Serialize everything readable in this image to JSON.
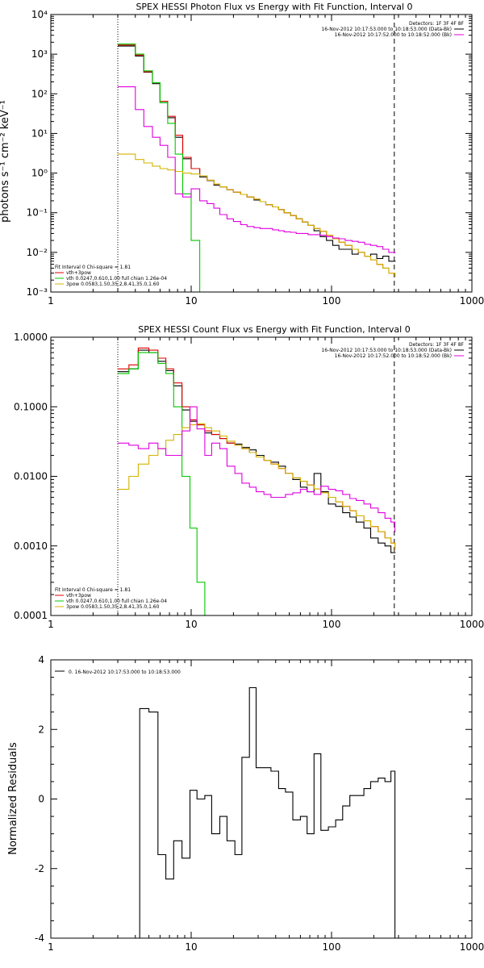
{
  "chart_data": [
    {
      "type": "line",
      "title": "SPEX HESSI Photon Flux vs Energy with Fit Function, Interval 0",
      "ylabel": "photons s⁻¹ cm⁻² keV⁻¹",
      "xlabel": "",
      "x_scale": "log",
      "y_scale": "log",
      "xlim": [
        1,
        1000
      ],
      "ylim": [
        0.001,
        10000
      ],
      "x_ticks": [
        "1",
        "10",
        "100",
        "1000"
      ],
      "y_ticks": [
        "10⁻³",
        "10⁻²",
        "10⁻¹",
        "10⁰",
        "10¹",
        "10²",
        "10³",
        "10⁴"
      ],
      "vlines": [
        {
          "x": 3,
          "style": "dotted"
        },
        {
          "x": 280,
          "style": "dashed"
        }
      ],
      "legend_top_right": [
        "Detectors: 1F 3F 4F 8F",
        "16-Nov-2012 10:17:53.000 to 10:18:53.000 (Data-Bk)",
        "16-Nov-2012 10:17:52.000 to 10:18:52.000 (Bk)"
      ],
      "legend_bottom_left": [
        "Fit Interval  0    Chi-square = 1.81",
        "vth+3pow",
        "vth 0.0247,0.610,1.00  full chian 1.26e-04",
        "3pow 0.0583,1.50,35.2,8.41,35.0,1.60"
      ],
      "series": [
        {
          "name": "Data-Bk",
          "color": "#000000",
          "x": [
            3,
            4,
            4.6,
            5.3,
            6,
            6.8,
            7.7,
            8.7,
            10,
            11.5,
            13,
            14.5,
            16,
            18,
            20,
            22.5,
            25,
            28,
            31,
            34,
            38,
            42,
            46,
            51,
            56,
            62,
            68,
            75,
            83,
            92,
            102,
            113,
            125,
            140,
            155,
            172,
            190,
            210,
            232,
            256,
            283
          ],
          "values": [
            1600,
            900,
            350,
            180,
            60,
            25,
            8,
            2.3,
            1.3,
            0.8,
            0.65,
            0.5,
            0.45,
            0.38,
            0.33,
            0.29,
            0.25,
            0.21,
            0.19,
            0.16,
            0.14,
            0.12,
            0.1,
            0.085,
            0.07,
            0.058,
            0.048,
            0.035,
            0.025,
            0.02,
            0.015,
            0.012,
            0.012,
            0.009,
            0.01,
            0.008,
            0.009,
            0.007,
            0.008,
            0.006,
            0.006
          ]
        },
        {
          "name": "vth+3pow",
          "color": "#e00000",
          "x": [
            3,
            4,
            4.6,
            5.3,
            6,
            6.8,
            7.7,
            8.7,
            10,
            11.5,
            13,
            14.5,
            16,
            18,
            20,
            22.5,
            25,
            28,
            31,
            34,
            38,
            42,
            46,
            51,
            56,
            62,
            68,
            75,
            83,
            92,
            102,
            113,
            125,
            140,
            155,
            172,
            190,
            210,
            232,
            256,
            283
          ],
          "values": [
            1700,
            950,
            360,
            190,
            65,
            27,
            9,
            2.5,
            1.3,
            0.85,
            0.66,
            0.53,
            0.45,
            0.38,
            0.33,
            0.29,
            0.25,
            0.22,
            0.19,
            0.16,
            0.14,
            0.12,
            0.1,
            0.085,
            0.07,
            0.058,
            0.048,
            0.04,
            0.034,
            0.027,
            0.022,
            0.018,
            0.015,
            0.012,
            0.01,
            0.008,
            0.0065,
            0.005,
            0.004,
            0.003,
            0.0025
          ]
        },
        {
          "name": "vth",
          "color": "#00c800",
          "x": [
            3,
            4,
            4.6,
            5.3,
            6,
            6.8,
            7.7,
            8.7,
            10,
            11.5
          ],
          "values": [
            1800,
            1000,
            380,
            190,
            60,
            18,
            3,
            0.3,
            0.02,
            0.0005
          ]
        },
        {
          "name": "3pow",
          "color": "#d2b400",
          "x": [
            3,
            4,
            4.6,
            5.3,
            6,
            6.8,
            7.7,
            8.7,
            10,
            11.5,
            13,
            14.5,
            16,
            18,
            20,
            22.5,
            25,
            28,
            31,
            34,
            38,
            42,
            46,
            51,
            56,
            62,
            68,
            75,
            83,
            92,
            102,
            113,
            125,
            140,
            155,
            172,
            190,
            210,
            232,
            256,
            283
          ],
          "values": [
            3,
            2.2,
            1.8,
            1.5,
            1.3,
            1.2,
            1.1,
            1.0,
            0.95,
            0.85,
            0.66,
            0.53,
            0.45,
            0.38,
            0.33,
            0.29,
            0.25,
            0.22,
            0.19,
            0.16,
            0.14,
            0.12,
            0.1,
            0.085,
            0.07,
            0.058,
            0.048,
            0.04,
            0.034,
            0.027,
            0.022,
            0.018,
            0.015,
            0.012,
            0.01,
            0.008,
            0.0065,
            0.005,
            0.004,
            0.003,
            0.0025
          ]
        },
        {
          "name": "Bk",
          "color": "#e000e0",
          "x": [
            3,
            4,
            4.6,
            5.3,
            6,
            6.8,
            7.7,
            8.7,
            10,
            11.5,
            13,
            14.5,
            16,
            18,
            20,
            22.5,
            25,
            28,
            31,
            34,
            38,
            42,
            46,
            51,
            56,
            62,
            68,
            75,
            83,
            92,
            102,
            113,
            125,
            140,
            155,
            172,
            190,
            210,
            232,
            256,
            283
          ],
          "values": [
            150,
            40,
            15,
            8,
            5,
            2.5,
            0.3,
            0.25,
            0.4,
            0.2,
            0.17,
            0.13,
            0.09,
            0.07,
            0.06,
            0.05,
            0.045,
            0.042,
            0.04,
            0.04,
            0.037,
            0.035,
            0.033,
            0.032,
            0.03,
            0.03,
            0.028,
            0.028,
            0.027,
            0.025,
            0.023,
            0.022,
            0.02,
            0.019,
            0.018,
            0.016,
            0.015,
            0.014,
            0.012,
            0.01,
            0.01
          ]
        }
      ]
    },
    {
      "type": "line",
      "title": "SPEX HESSI Count Flux vs Energy with Fit Function, Interval 0",
      "ylabel": "",
      "xlabel": "",
      "x_scale": "log",
      "y_scale": "log",
      "xlim": [
        1,
        1000
      ],
      "ylim": [
        0.0001,
        1
      ],
      "x_ticks": [
        "1",
        "10",
        "100",
        "1000"
      ],
      "y_ticks": [
        "0.0001",
        "0.0010",
        "0.0100",
        "0.1000",
        "1.0000"
      ],
      "vlines": [
        {
          "x": 3,
          "style": "dotted"
        },
        {
          "x": 280,
          "style": "dashed"
        }
      ],
      "legend_top_right": [
        "Detectors: 1F 3F 4F 8F",
        "16-Nov-2012 10:17:53.000 to 10:18:53.000 (Data-Bk)",
        "16-Nov-2012 10:17:52.000 to 10:18:52.000 (Bk)"
      ],
      "legend_bottom_left": [
        "Fit Interval  0    Chi-square = 1.81",
        "vth+3pow",
        "vth 0.0247,0.610,1.00  full chian 1.26e-04",
        "3pow 0.0583,1.50,35.2,8.41,35.0,1.60"
      ],
      "series": [
        {
          "name": "Data-Bk",
          "color": "#000000",
          "x": [
            3,
            3.6,
            4.2,
            5,
            5.8,
            6.6,
            7.5,
            8.6,
            9.8,
            11,
            12.5,
            14,
            16,
            18,
            20.5,
            23,
            26,
            29,
            33,
            37,
            42,
            47,
            53,
            60,
            67,
            75,
            84,
            95,
            107,
            120,
            135,
            150,
            170,
            190,
            215,
            240,
            265,
            283
          ],
          "values": [
            0.32,
            0.35,
            0.65,
            0.6,
            0.45,
            0.33,
            0.2,
            0.09,
            0.062,
            0.055,
            0.042,
            0.04,
            0.035,
            0.03,
            0.029,
            0.026,
            0.024,
            0.02,
            0.017,
            0.016,
            0.014,
            0.011,
            0.009,
            0.007,
            0.006,
            0.011,
            0.006,
            0.004,
            0.0037,
            0.003,
            0.0026,
            0.0022,
            0.0018,
            0.0013,
            0.0011,
            0.001,
            0.0008,
            0.0008
          ]
        },
        {
          "name": "vth+3pow",
          "color": "#e00000",
          "x": [
            3,
            3.6,
            4.2,
            5,
            5.8,
            6.6,
            7.5,
            8.6,
            9.8,
            11,
            12.5,
            14,
            16,
            18,
            20.5,
            23,
            26,
            29,
            33,
            37,
            42,
            47,
            53,
            60,
            67,
            75,
            84,
            95,
            107,
            120,
            135,
            150,
            170,
            190,
            215,
            240,
            265,
            283
          ],
          "values": [
            0.35,
            0.4,
            0.7,
            0.65,
            0.5,
            0.35,
            0.22,
            0.1,
            0.065,
            0.055,
            0.045,
            0.04,
            0.035,
            0.03,
            0.028,
            0.025,
            0.022,
            0.019,
            0.017,
            0.015,
            0.013,
            0.011,
            0.0095,
            0.0085,
            0.0075,
            0.0066,
            0.0058,
            0.005,
            0.0043,
            0.0037,
            0.0032,
            0.0027,
            0.0023,
            0.0019,
            0.0016,
            0.0013,
            0.0011,
            0.0009
          ]
        },
        {
          "name": "vth",
          "color": "#00c800",
          "x": [
            3,
            3.6,
            4.2,
            5,
            5.8,
            6.6,
            7.5,
            8.6,
            9.8,
            11,
            12.5
          ],
          "values": [
            0.3,
            0.35,
            0.6,
            0.6,
            0.42,
            0.3,
            0.1,
            0.01,
            0.0018,
            0.0003,
            5e-05
          ]
        },
        {
          "name": "3pow",
          "color": "#d2b400",
          "x": [
            3,
            3.6,
            4.2,
            5,
            5.8,
            6.6,
            7.5,
            8.6,
            9.8,
            11,
            12.5,
            14,
            16,
            18,
            20.5,
            23,
            26,
            29,
            33,
            37,
            42,
            47,
            53,
            60,
            67,
            75,
            84,
            95,
            107,
            120,
            135,
            150,
            170,
            190,
            215,
            240,
            265,
            283
          ],
          "values": [
            0.0065,
            0.01,
            0.015,
            0.02,
            0.025,
            0.033,
            0.04,
            0.05,
            0.055,
            0.057,
            0.05,
            0.045,
            0.038,
            0.032,
            0.028,
            0.025,
            0.022,
            0.019,
            0.017,
            0.015,
            0.013,
            0.011,
            0.0095,
            0.0085,
            0.0075,
            0.0066,
            0.0058,
            0.005,
            0.0043,
            0.0037,
            0.0032,
            0.0027,
            0.0023,
            0.0019,
            0.0016,
            0.0013,
            0.0011,
            0.0009
          ]
        },
        {
          "name": "Bk",
          "color": "#e000e0",
          "x": [
            3,
            3.6,
            4.2,
            5,
            5.8,
            6.6,
            7.5,
            8.6,
            9.8,
            11,
            12.5,
            14,
            16,
            18,
            20.5,
            23,
            26,
            29,
            33,
            37,
            42,
            47,
            53,
            60,
            67,
            75,
            84,
            95,
            107,
            120,
            135,
            150,
            170,
            190,
            215,
            240,
            265,
            283
          ],
          "values": [
            0.03,
            0.028,
            0.025,
            0.03,
            0.025,
            0.02,
            0.02,
            0.045,
            0.1,
            0.048,
            0.02,
            0.03,
            0.025,
            0.014,
            0.011,
            0.008,
            0.007,
            0.006,
            0.0055,
            0.005,
            0.005,
            0.0055,
            0.0058,
            0.0065,
            0.006,
            0.0055,
            0.0072,
            0.0065,
            0.0062,
            0.0055,
            0.0048,
            0.0045,
            0.004,
            0.0035,
            0.003,
            0.0025,
            0.0022,
            0.0016
          ]
        }
      ]
    },
    {
      "type": "line",
      "title": "",
      "ylabel": "Normalized Residuals",
      "xlabel": "",
      "x_scale": "log",
      "y_scale": "linear",
      "xlim": [
        1,
        1000
      ],
      "ylim": [
        -4,
        4
      ],
      "x_ticks": [
        "1",
        "10",
        "100",
        "1000"
      ],
      "y_ticks": [
        "-4",
        "-2",
        "0",
        "2",
        "4"
      ],
      "legend_top_left": [
        "0. 16-Nov-2012 10:17:53.000 to 10:18:53.000"
      ],
      "series": [
        {
          "name": "0. 16-Nov-2012 10:17:53.000 to 10:18:53.000",
          "color": "#000000",
          "x": [
            3,
            4.3,
            5,
            5.8,
            6.6,
            7.5,
            8.6,
            9.8,
            11,
            12.5,
            14,
            16,
            18,
            20.5,
            23,
            26,
            29,
            33,
            37,
            42,
            47,
            53,
            60,
            67,
            75,
            84,
            95,
            107,
            120,
            135,
            150,
            170,
            190,
            215,
            240,
            265,
            283
          ],
          "values": [
            -4,
            2.6,
            2.5,
            -1.6,
            -2.3,
            -1.2,
            -1.7,
            0.25,
            0,
            0.1,
            -1,
            -0.5,
            -1.2,
            -1.6,
            1.2,
            3.2,
            0.9,
            0.9,
            0.8,
            0.3,
            0.2,
            -0.6,
            -0.5,
            -1.0,
            1.3,
            -0.9,
            -0.8,
            -0.6,
            -0.2,
            0.1,
            0.1,
            0.3,
            0.5,
            0.6,
            0.5,
            0.8,
            -4
          ]
        }
      ]
    }
  ]
}
